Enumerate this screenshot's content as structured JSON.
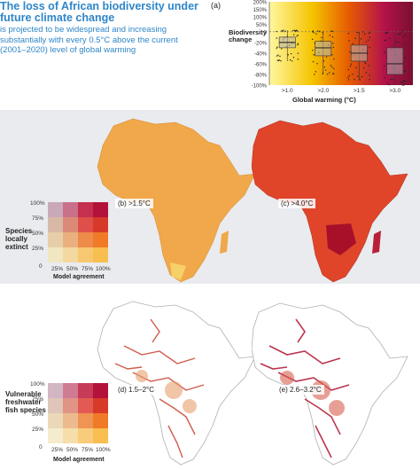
{
  "header": {
    "title": "The loss of African biodiversity under future climate change",
    "subtitle": "is projected to be widespread and increasing substantially with every 0.5°C above the current (2001–2020) level of global warming"
  },
  "chart_data": {
    "type": "box",
    "panel_label": "(a)",
    "ylabel": "Biodiversity change",
    "xlabel": "Global warming (°C)",
    "categories": [
      ">1.0",
      ">2.0",
      ">1.5",
      ">3.0"
    ],
    "yticks": [
      "200%",
      "150%",
      "100%",
      "50%",
      "0",
      "-20%",
      "-40%",
      "-60%",
      "-80%",
      "-100%"
    ],
    "gradient_colors": [
      "#fff7a0",
      "#f5c400",
      "#e65c00",
      "#b3124a",
      "#7a1030"
    ],
    "boxes": [
      {
        "category": ">1.0",
        "median": -20,
        "q1": -30,
        "q3": -10,
        "whisker_low": -55,
        "whisker_high": 10
      },
      {
        "category": ">2.0",
        "median": -30,
        "q1": -45,
        "q3": -18,
        "whisker_low": -80,
        "whisker_high": 5
      },
      {
        "category": ">1.5",
        "median": -40,
        "q1": -55,
        "q3": -25,
        "whisker_low": -90,
        "whisker_high": 0
      },
      {
        "category": ">3.0",
        "median": -60,
        "q1": -80,
        "q3": -30,
        "whisker_low": -100,
        "whisker_high": 0
      }
    ]
  },
  "maps": {
    "panel_b": "(b) >1.5°C",
    "panel_c": "(c) >4.0°C",
    "panel_d": "(d) 1.5–2°C",
    "panel_e": "(e) 2.6–3.2°C"
  },
  "legend_top": {
    "title": "Species locally extinct",
    "y_ticks": [
      "100%",
      "75%",
      "50%",
      "25%"
    ],
    "x_ticks": [
      "0",
      "25%",
      "50%",
      "75%",
      "100%"
    ],
    "x_caption": "Model agreement"
  },
  "legend_bottom": {
    "title": "Vulnerable freshwater fish species",
    "y_ticks": [
      "100%",
      "75%",
      "50%",
      "25%"
    ],
    "x_ticks": [
      "0",
      "25%",
      "50%",
      "75%",
      "100%"
    ],
    "x_caption": "Model agreement"
  },
  "colors": {
    "title_blue": "#2f86c8",
    "map_b": "#f0a84a",
    "map_c": "#e0452a",
    "fish_red": "#c8402e"
  }
}
